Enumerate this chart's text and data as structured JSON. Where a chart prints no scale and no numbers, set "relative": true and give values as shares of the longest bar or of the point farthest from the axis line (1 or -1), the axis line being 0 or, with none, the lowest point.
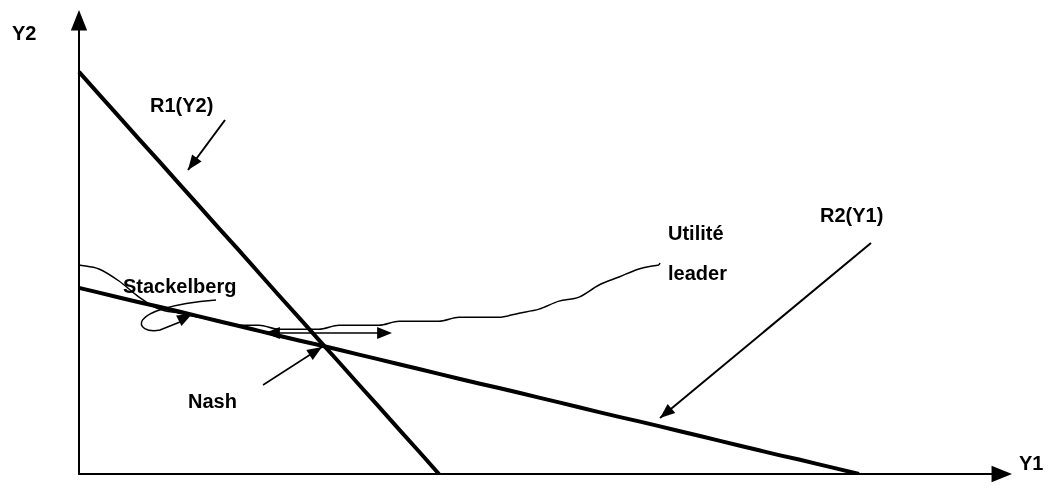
{
  "chart_data": {
    "type": "line",
    "relative": true,
    "xlabel": "Y1",
    "ylabel": "Y2",
    "legend": false,
    "marker": "none",
    "categories": [
      null,
      null,
      null,
      null,
      null,
      null,
      null,
      null,
      null,
      null,
      null,
      null,
      null,
      null,
      null,
      null,
      null,
      null,
      null,
      null,
      null,
      null,
      null,
      null,
      null,
      null,
      null,
      null,
      null,
      null,
      null,
      null,
      null,
      null,
      null,
      null,
      null,
      null,
      null,
      null,
      null,
      null,
      null,
      null,
      null,
      null,
      null
    ],
    "series": [
      {
        "name": "R1(Y2)",
        "color": "#000000",
        "values": [
          1,
          0.944,
          0.889,
          0.833,
          0.778,
          0.722,
          0.667,
          0.611,
          0.556,
          0.5,
          0.444,
          0.389,
          0.333,
          0.278,
          0.222,
          0.167,
          0.111,
          0.056,
          0,
          null,
          null,
          null,
          null,
          null,
          null,
          null,
          null,
          null,
          null,
          null,
          null,
          null,
          null,
          null,
          null,
          null,
          null,
          null,
          null,
          null,
          null,
          null,
          null,
          null,
          null,
          null,
          null
        ]
      },
      {
        "name": "R2(Y1)",
        "color": "#000000",
        "values": [
          0.463,
          0.451,
          0.439,
          0.427,
          0.416,
          0.404,
          0.392,
          0.38,
          0.368,
          0.356,
          0.344,
          0.332,
          0.321,
          0.309,
          0.297,
          0.285,
          0.273,
          0.261,
          0.249,
          0.237,
          0.225,
          0.214,
          0.202,
          0.19,
          0.178,
          0.166,
          0.154,
          0.142,
          0.131,
          0.119,
          0.107,
          0.095,
          0.083,
          0.071,
          0.059,
          0.047,
          0.036,
          0.024,
          0.012,
          0,
          null,
          null,
          null,
          null,
          null,
          null,
          null
        ]
      },
      {
        "name": "Utilité leader",
        "color": "#000000",
        "values": [
          0.52,
          0.51,
          0.48,
          0.44,
          0.41,
          0.4,
          0.39,
          0.38,
          0.37,
          0.37,
          0.36,
          0.36,
          0.36,
          0.37,
          0.37,
          0.37,
          0.38,
          0.38,
          0.38,
          0.39,
          0.39,
          0.39,
          0.4,
          0.41,
          0.43,
          0.44,
          0.47,
          0.49,
          0.51,
          0.52,
          null,
          null,
          null,
          null,
          null,
          null,
          null,
          null,
          null,
          null,
          null,
          null,
          null,
          null,
          null,
          null,
          null
        ]
      }
    ],
    "annotations": [
      "Stackelberg",
      "Nash"
    ]
  }
}
